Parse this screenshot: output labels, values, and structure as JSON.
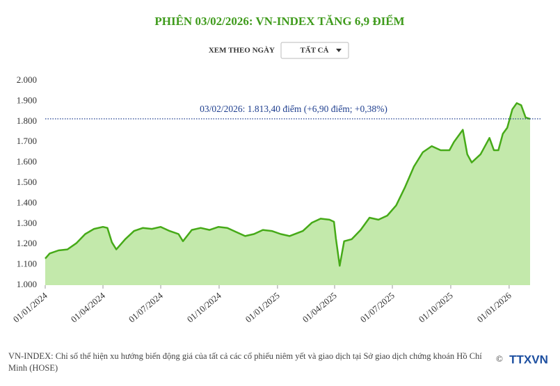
{
  "chart_data": {
    "type": "area",
    "title": "PHIÊN 03/02/2026: VN-INDEX TĂNG 6,9 ĐIỂM",
    "filter_label": "XEM THEO NGÀY",
    "filter_value": "TẤT CẢ",
    "annotation": "03/02/2026: 1.813,40 điểm (+6,90 điểm; +0,38%)",
    "note": "VN-INDEX: Chỉ số thể hiện xu hướng biến động giá của tất cả các cổ phiếu niêm yết và giao dịch tại Sở giao dịch chứng khoán Hồ Chí Minh (HOSE)",
    "logo": "TTXVN",
    "copyright": "©",
    "color": "#46aa18",
    "fill": "#c3e9ab",
    "grid": false,
    "x": [
      "01/01/2024",
      "08/01/2024",
      "22/01/2024",
      "05/02/2024",
      "19/02/2024",
      "04/03/2024",
      "18/03/2024",
      "01/04/2024",
      "08/04/2024",
      "15/04/2024",
      "22/04/2024",
      "06/05/2024",
      "20/05/2024",
      "03/06/2024",
      "17/06/2024",
      "01/07/2024",
      "15/07/2024",
      "29/07/2024",
      "05/08/2024",
      "19/08/2024",
      "02/09/2024",
      "16/09/2024",
      "30/09/2024",
      "14/10/2024",
      "28/10/2024",
      "11/11/2024",
      "25/11/2024",
      "09/12/2024",
      "23/12/2024",
      "06/01/2025",
      "20/01/2025",
      "10/02/2025",
      "24/02/2025",
      "10/03/2025",
      "24/03/2025",
      "31/03/2025",
      "03/04/2025",
      "09/04/2025",
      "16/04/2025",
      "28/04/2025",
      "12/05/2025",
      "26/05/2025",
      "09/06/2025",
      "23/06/2025",
      "07/07/2025",
      "21/07/2025",
      "04/08/2025",
      "18/08/2025",
      "01/09/2025",
      "15/09/2025",
      "29/09/2025",
      "06/10/2025",
      "20/10/2025",
      "27/10/2025",
      "03/11/2025",
      "17/11/2025",
      "01/12/2025",
      "08/12/2025",
      "15/12/2025",
      "22/12/2025",
      "29/12/2025",
      "06/01/2026",
      "13/01/2026",
      "20/01/2026",
      "27/01/2026",
      "03/02/2026"
    ],
    "values": [
      1130,
      1155,
      1170,
      1175,
      1205,
      1250,
      1275,
      1285,
      1280,
      1210,
      1175,
      1225,
      1265,
      1280,
      1275,
      1285,
      1265,
      1250,
      1215,
      1270,
      1280,
      1270,
      1285,
      1280,
      1260,
      1240,
      1250,
      1270,
      1265,
      1250,
      1240,
      1265,
      1305,
      1325,
      1320,
      1310,
      1230,
      1095,
      1215,
      1225,
      1270,
      1330,
      1320,
      1340,
      1390,
      1480,
      1580,
      1650,
      1680,
      1660,
      1660,
      1700,
      1760,
      1640,
      1600,
      1640,
      1720,
      1660,
      1660,
      1740,
      1770,
      1860,
      1890,
      1880,
      1820,
      1813.4
    ],
    "xlim": [
      "01/01/2024",
      "03/02/2026"
    ],
    "xticks": [
      "01/01/2024",
      "01/04/2024",
      "01/07/2024",
      "01/10/2024",
      "01/01/2025",
      "01/04/2025",
      "01/07/2025",
      "01/10/2025",
      "01/01/2026"
    ],
    "ylim": [
      1000,
      2000
    ],
    "yticks": [
      {
        "value": 1000,
        "label": "1.000"
      },
      {
        "value": 1100,
        "label": "1.100"
      },
      {
        "value": 1200,
        "label": "1.200"
      },
      {
        "value": 1300,
        "label": "1.300"
      },
      {
        "value": 1400,
        "label": "1.400"
      },
      {
        "value": 1500,
        "label": "1.500"
      },
      {
        "value": 1600,
        "label": "1.600"
      },
      {
        "value": 1700,
        "label": "1.700"
      },
      {
        "value": 1800,
        "label": "1.800"
      },
      {
        "value": 1900,
        "label": "1.900"
      },
      {
        "value": 2000,
        "label": "2.000"
      }
    ]
  }
}
